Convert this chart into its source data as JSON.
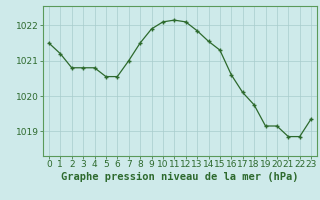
{
  "x": [
    0,
    1,
    2,
    3,
    4,
    5,
    6,
    7,
    8,
    9,
    10,
    11,
    12,
    13,
    14,
    15,
    16,
    17,
    18,
    19,
    20,
    21,
    22,
    23
  ],
  "y": [
    1021.5,
    1021.2,
    1020.8,
    1020.8,
    1020.8,
    1020.55,
    1020.55,
    1021.0,
    1021.5,
    1021.9,
    1022.1,
    1022.15,
    1022.1,
    1021.85,
    1021.55,
    1021.3,
    1020.6,
    1020.1,
    1019.75,
    1019.15,
    1019.15,
    1018.85,
    1018.85,
    1019.35
  ],
  "line_color": "#2d6a2d",
  "marker_color": "#2d6a2d",
  "bg_color": "#ceeaea",
  "grid_color": "#a8cccc",
  "axis_color": "#2d6a2d",
  "border_color": "#5a9a5a",
  "xlabel": "Graphe pression niveau de la mer (hPa)",
  "ylim_min": 1018.3,
  "ylim_max": 1022.55,
  "yticks": [
    1019,
    1020,
    1021,
    1022
  ],
  "xticks": [
    0,
    1,
    2,
    3,
    4,
    5,
    6,
    7,
    8,
    9,
    10,
    11,
    12,
    13,
    14,
    15,
    16,
    17,
    18,
    19,
    20,
    21,
    22,
    23
  ],
  "font_size": 6.5,
  "label_font_size": 7.5
}
